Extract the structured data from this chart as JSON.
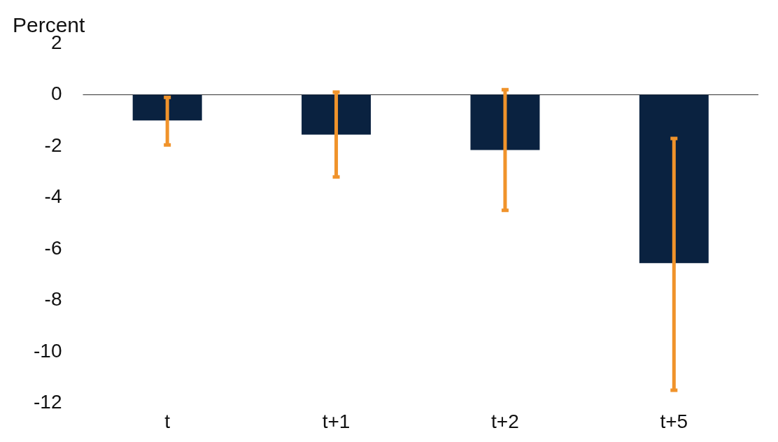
{
  "chart_data": {
    "type": "bar",
    "ylabel": "Percent",
    "categories": [
      "t",
      "t+1",
      "t+2",
      "t+5"
    ],
    "series": [
      {
        "color": "#0a2240",
        "values": [
          -1.0,
          -1.55,
          -2.15,
          -6.55
        ],
        "errors": [
          [
            -1.95,
            -0.1
          ],
          [
            -3.2,
            0.1
          ],
          [
            -4.5,
            0.2
          ],
          [
            -11.5,
            -1.7
          ]
        ]
      }
    ],
    "ylim": [
      -12,
      2
    ],
    "yticks": [
      2,
      0,
      -2,
      -4,
      -6,
      -8,
      -10,
      -12
    ],
    "ref_lines": [
      {
        "axis": "y",
        "value": 0,
        "color": "#333333"
      }
    ]
  }
}
